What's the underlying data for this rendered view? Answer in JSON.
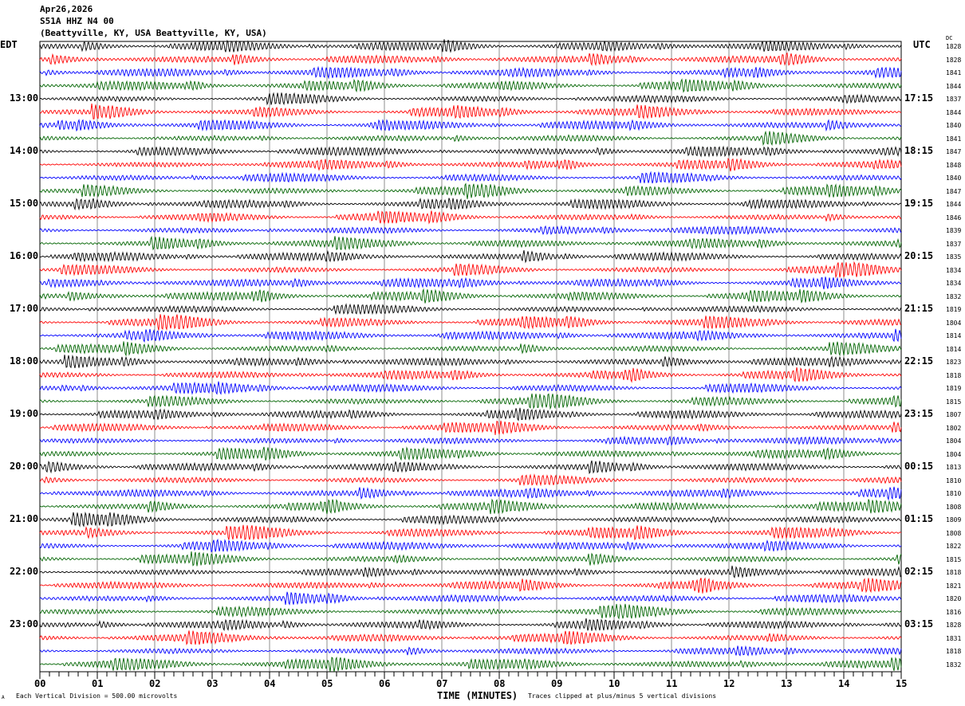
{
  "header": {
    "date": "Apr26,2026",
    "channel": "S51A HHZ N4 00",
    "location": "(Beattyville, KY, USA Beattyville, KY, USA)"
  },
  "left_tz": "EDT",
  "right_tz": "UTC",
  "dc_label": "DC",
  "footer": {
    "scale": "Each Vertical Division =  500.00 microvolts",
    "xlabel": "TIME (MINUTES)",
    "clip_note": "Traces clipped at plus/minus 5 vertical divisions",
    "corner_mark": "A"
  },
  "chart_data": {
    "type": "line",
    "title": "S51A HHZ N4 00 helicorder",
    "xlabel": "TIME (MINUTES)",
    "xlim": [
      0,
      15
    ],
    "x_ticks": [
      "00",
      "01",
      "02",
      "03",
      "04",
      "05",
      "06",
      "07",
      "08",
      "09",
      "10",
      "11",
      "12",
      "13",
      "14",
      "15"
    ],
    "left_hour_labels": [
      "13:00",
      "14:00",
      "15:00",
      "16:00",
      "17:00",
      "18:00",
      "19:00",
      "20:00",
      "21:00",
      "22:00",
      "23:00"
    ],
    "right_hour_labels": [
      "17:15",
      "18:15",
      "19:15",
      "20:15",
      "21:15",
      "22:15",
      "23:15",
      "00:15",
      "01:15",
      "02:15",
      "03:15"
    ],
    "trace_colors": [
      "#000000",
      "#ff0000",
      "#0000ff",
      "#006400"
    ],
    "trace_count": 48,
    "minutes_per_trace": 15,
    "dc_offsets": [
      1828,
      1828,
      1841,
      1844,
      1837,
      1844,
      1840,
      1841,
      1847,
      1848,
      1840,
      1847,
      1844,
      1846,
      1839,
      1837,
      1835,
      1834,
      1834,
      1832,
      1819,
      1804,
      1814,
      1814,
      1823,
      1818,
      1819,
      1815,
      1807,
      1802,
      1804,
      1804,
      1813,
      1810,
      1810,
      1808,
      1809,
      1808,
      1822,
      1815,
      1818,
      1821,
      1820,
      1816,
      1828,
      1831,
      1818,
      1832
    ]
  }
}
